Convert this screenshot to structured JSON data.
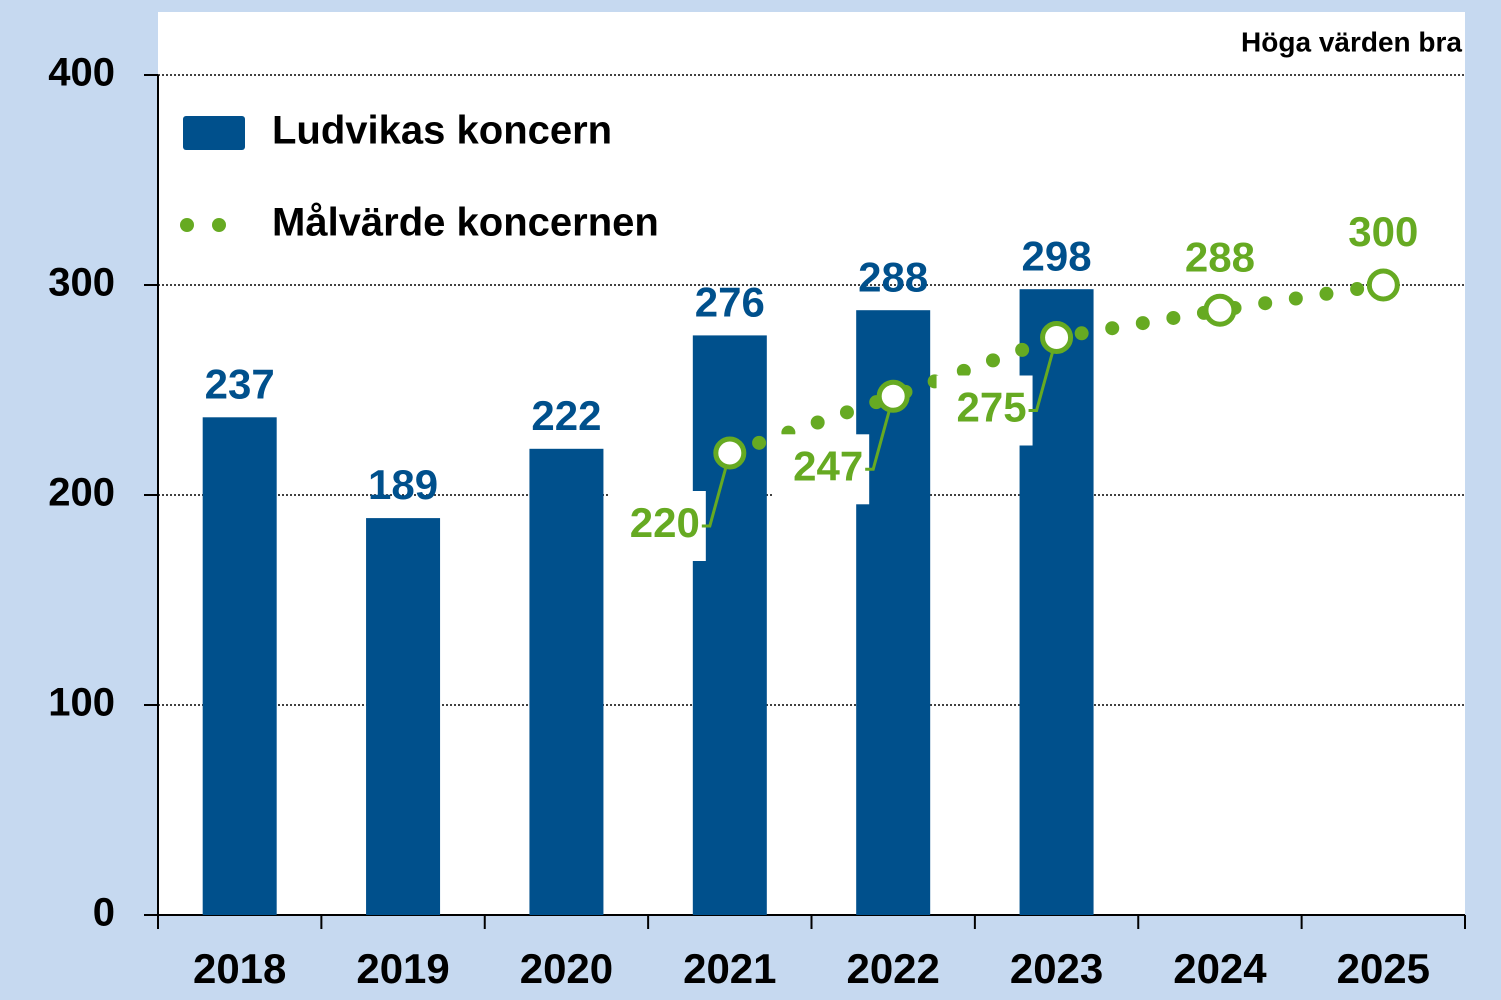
{
  "chart_data": {
    "type": "bar",
    "annotation": "Höga värden bra",
    "categories": [
      "2018",
      "2019",
      "2020",
      "2021",
      "2022",
      "2023",
      "2024",
      "2025"
    ],
    "series": [
      {
        "name": "Ludvikas koncern",
        "type": "bar",
        "color": "#00508c",
        "values": [
          237,
          189,
          222,
          276,
          288,
          298,
          null,
          null
        ]
      },
      {
        "name": "Målvärde koncernen",
        "type": "line",
        "color": "#66aa22",
        "values": [
          null,
          null,
          null,
          220,
          247,
          275,
          288,
          300
        ]
      }
    ],
    "ylim": [
      0,
      400
    ],
    "yticks": [
      0,
      100,
      200,
      300,
      400
    ],
    "grid": true,
    "legend": "upper left"
  }
}
